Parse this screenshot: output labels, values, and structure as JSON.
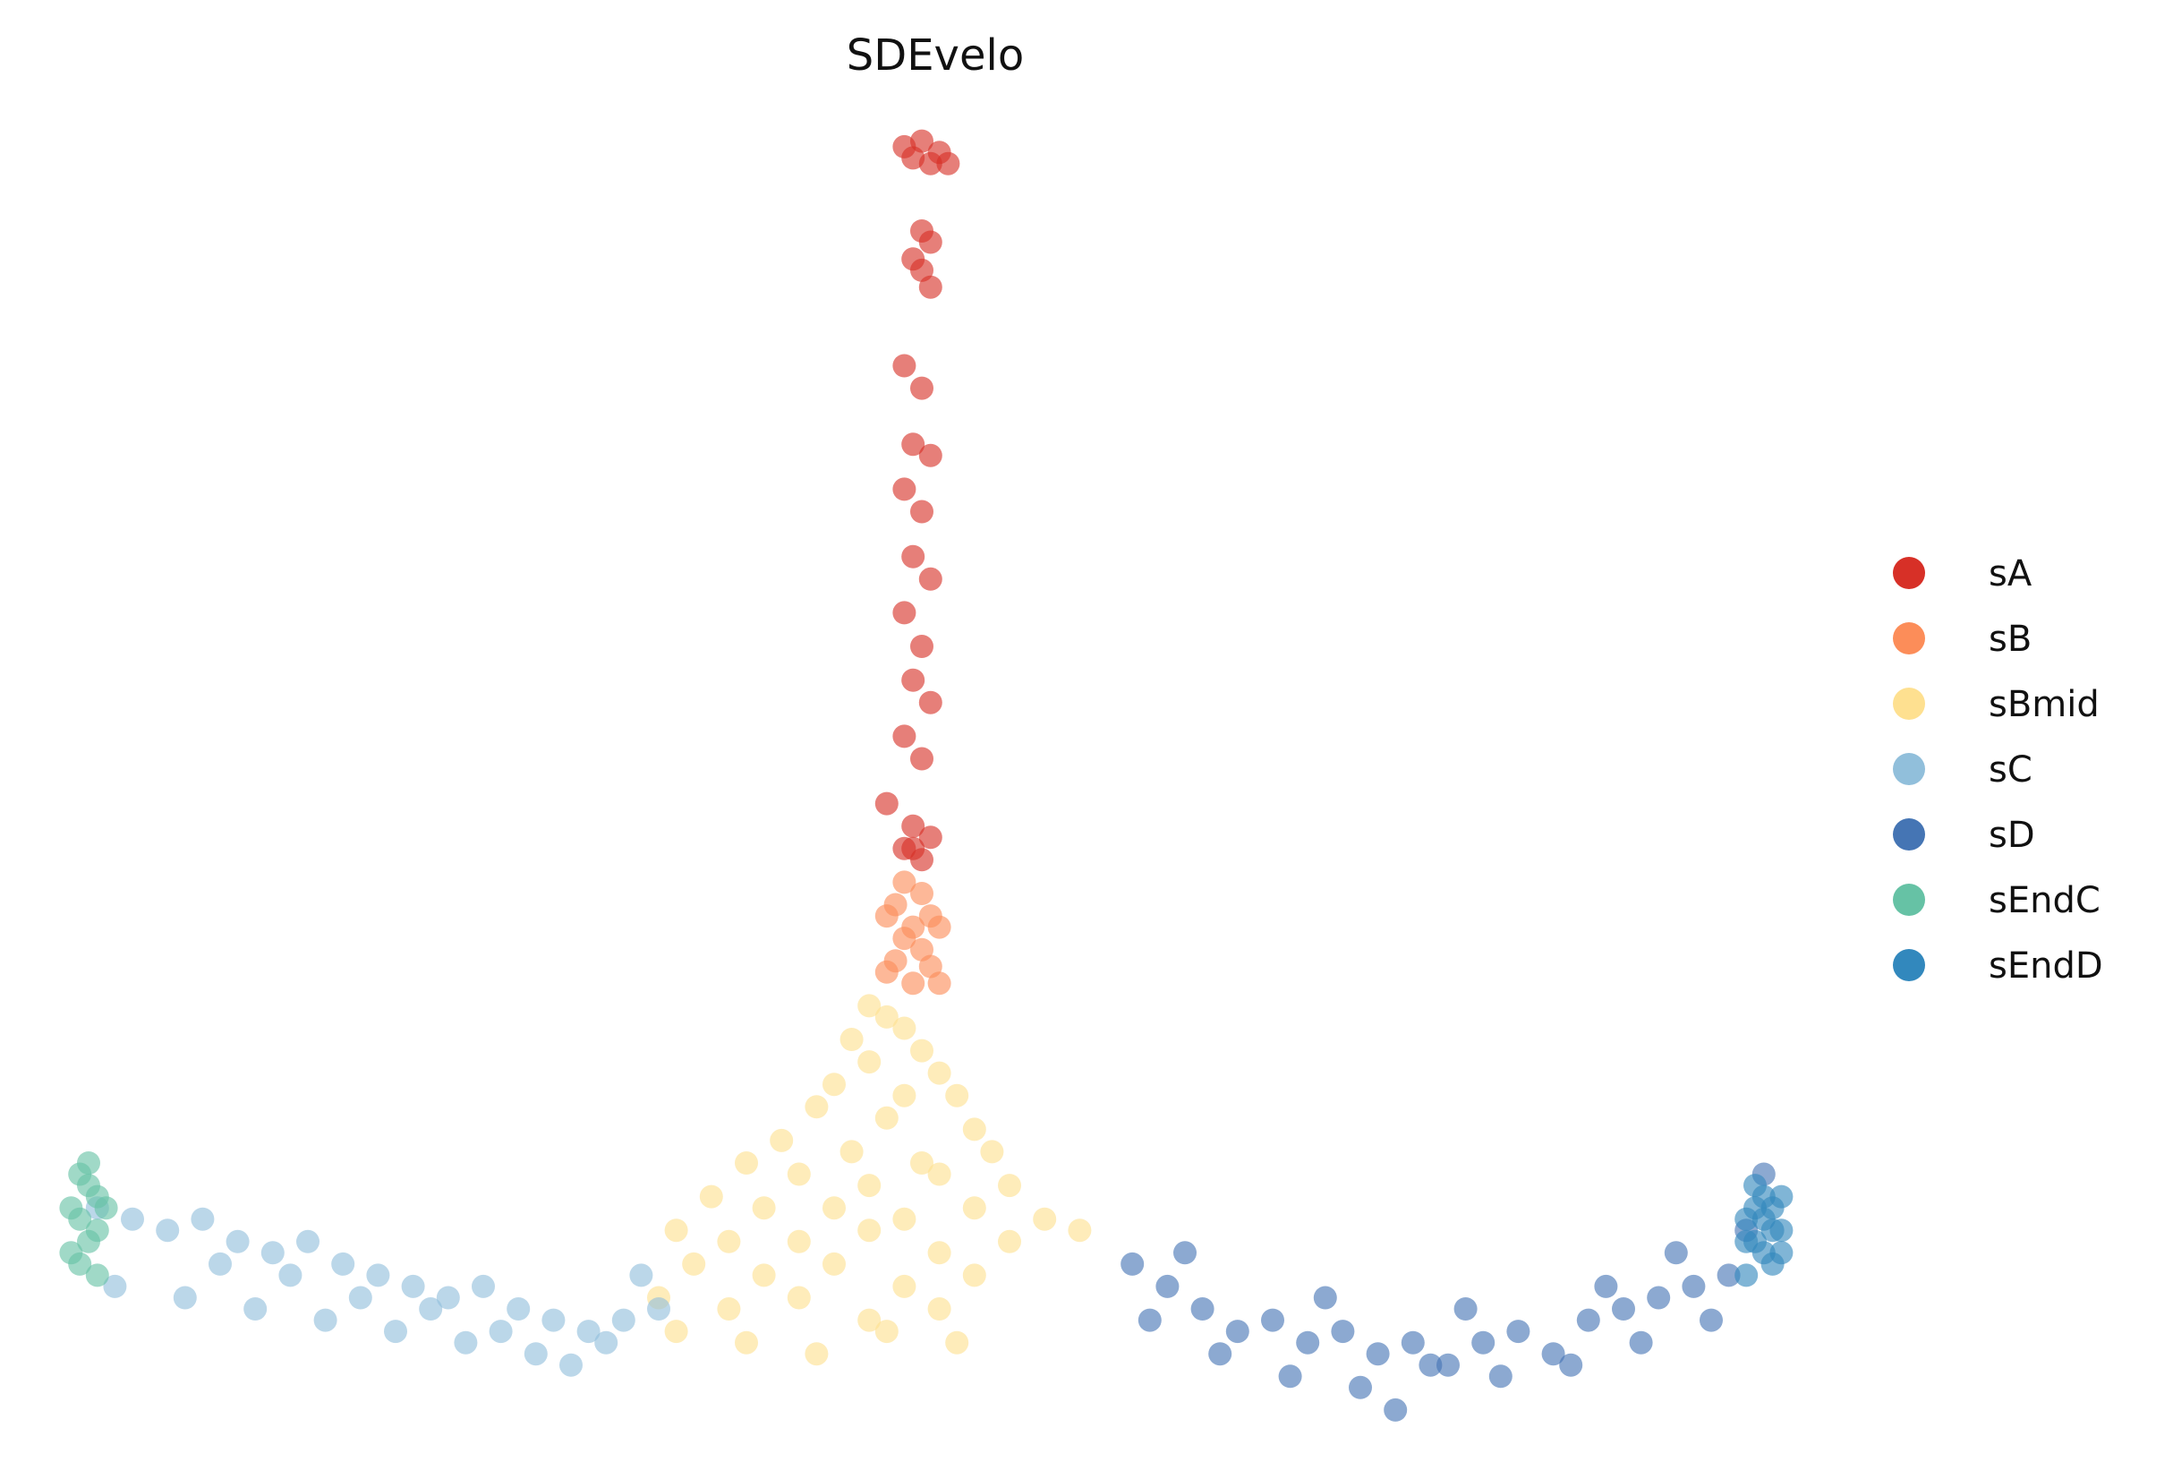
{
  "chart_data": {
    "type": "scatter",
    "title": "SDEvelo",
    "xlabel": "",
    "ylabel": "",
    "axes_visible": false,
    "legend_position": "right",
    "series": [
      {
        "name": "sA",
        "color": "#d73027",
        "points": [
          [
            0.5,
            0.97
          ],
          [
            0.51,
            0.96
          ],
          [
            0.495,
            0.955
          ],
          [
            0.505,
            0.95
          ],
          [
            0.49,
            0.965
          ],
          [
            0.515,
            0.95
          ],
          [
            0.5,
            0.89
          ],
          [
            0.505,
            0.88
          ],
          [
            0.495,
            0.865
          ],
          [
            0.5,
            0.855
          ],
          [
            0.505,
            0.84
          ],
          [
            0.49,
            0.77
          ],
          [
            0.5,
            0.75
          ],
          [
            0.495,
            0.7
          ],
          [
            0.505,
            0.69
          ],
          [
            0.49,
            0.66
          ],
          [
            0.5,
            0.64
          ],
          [
            0.495,
            0.6
          ],
          [
            0.505,
            0.58
          ],
          [
            0.49,
            0.55
          ],
          [
            0.5,
            0.52
          ],
          [
            0.495,
            0.49
          ],
          [
            0.505,
            0.47
          ],
          [
            0.49,
            0.44
          ],
          [
            0.5,
            0.42
          ],
          [
            0.48,
            0.38
          ],
          [
            0.495,
            0.36
          ],
          [
            0.505,
            0.35
          ],
          [
            0.49,
            0.34
          ],
          [
            0.5,
            0.33
          ],
          [
            0.495,
            0.34
          ]
        ]
      },
      {
        "name": "sB",
        "color": "#fc8d59",
        "points": [
          [
            0.49,
            0.31
          ],
          [
            0.5,
            0.3
          ],
          [
            0.485,
            0.29
          ],
          [
            0.505,
            0.28
          ],
          [
            0.495,
            0.27
          ],
          [
            0.48,
            0.28
          ],
          [
            0.51,
            0.27
          ],
          [
            0.49,
            0.26
          ],
          [
            0.5,
            0.25
          ],
          [
            0.485,
            0.24
          ],
          [
            0.505,
            0.235
          ],
          [
            0.495,
            0.22
          ],
          [
            0.48,
            0.23
          ],
          [
            0.51,
            0.22
          ]
        ]
      },
      {
        "name": "sBmid",
        "color": "#fee090",
        "points": [
          [
            0.47,
            0.2
          ],
          [
            0.48,
            0.19
          ],
          [
            0.49,
            0.18
          ],
          [
            0.46,
            0.17
          ],
          [
            0.5,
            0.16
          ],
          [
            0.47,
            0.15
          ],
          [
            0.51,
            0.14
          ],
          [
            0.45,
            0.13
          ],
          [
            0.49,
            0.12
          ],
          [
            0.52,
            0.12
          ],
          [
            0.44,
            0.11
          ],
          [
            0.48,
            0.1
          ],
          [
            0.53,
            0.09
          ],
          [
            0.42,
            0.08
          ],
          [
            0.46,
            0.07
          ],
          [
            0.5,
            0.06
          ],
          [
            0.54,
            0.07
          ],
          [
            0.4,
            0.06
          ],
          [
            0.43,
            0.05
          ],
          [
            0.47,
            0.04
          ],
          [
            0.51,
            0.05
          ],
          [
            0.55,
            0.04
          ],
          [
            0.38,
            0.03
          ],
          [
            0.41,
            0.02
          ],
          [
            0.45,
            0.02
          ],
          [
            0.49,
            0.01
          ],
          [
            0.53,
            0.02
          ],
          [
            0.57,
            0.01
          ],
          [
            0.36,
            0.0
          ],
          [
            0.39,
            -0.01
          ],
          [
            0.43,
            -0.01
          ],
          [
            0.47,
            0.0
          ],
          [
            0.51,
            -0.02
          ],
          [
            0.55,
            -0.01
          ],
          [
            0.59,
            0.0
          ],
          [
            0.37,
            -0.03
          ],
          [
            0.41,
            -0.04
          ],
          [
            0.45,
            -0.03
          ],
          [
            0.49,
            -0.05
          ],
          [
            0.53,
            -0.04
          ],
          [
            0.35,
            -0.06
          ],
          [
            0.39,
            -0.07
          ],
          [
            0.43,
            -0.06
          ],
          [
            0.47,
            -0.08
          ],
          [
            0.51,
            -0.07
          ],
          [
            0.36,
            -0.09
          ],
          [
            0.4,
            -0.1
          ],
          [
            0.44,
            -0.11
          ],
          [
            0.48,
            -0.09
          ],
          [
            0.52,
            -0.1
          ]
        ]
      },
      {
        "name": "sC",
        "color": "#91bfdb",
        "points": [
          [
            0.03,
            0.02
          ],
          [
            0.05,
            0.01
          ],
          [
            0.07,
            0.0
          ],
          [
            0.09,
            0.01
          ],
          [
            0.11,
            -0.01
          ],
          [
            0.13,
            -0.02
          ],
          [
            0.15,
            -0.01
          ],
          [
            0.17,
            -0.03
          ],
          [
            0.19,
            -0.04
          ],
          [
            0.21,
            -0.05
          ],
          [
            0.23,
            -0.06
          ],
          [
            0.25,
            -0.05
          ],
          [
            0.27,
            -0.07
          ],
          [
            0.29,
            -0.08
          ],
          [
            0.31,
            -0.09
          ],
          [
            0.33,
            -0.08
          ],
          [
            0.04,
            -0.05
          ],
          [
            0.08,
            -0.06
          ],
          [
            0.12,
            -0.07
          ],
          [
            0.16,
            -0.08
          ],
          [
            0.2,
            -0.09
          ],
          [
            0.24,
            -0.1
          ],
          [
            0.28,
            -0.11
          ],
          [
            0.32,
            -0.1
          ],
          [
            0.1,
            -0.03
          ],
          [
            0.14,
            -0.04
          ],
          [
            0.18,
            -0.06
          ],
          [
            0.22,
            -0.07
          ],
          [
            0.26,
            -0.09
          ],
          [
            0.3,
            -0.12
          ],
          [
            0.34,
            -0.04
          ],
          [
            0.35,
            -0.07
          ]
        ]
      },
      {
        "name": "sD",
        "color": "#4575b4",
        "points": [
          [
            0.62,
            -0.03
          ],
          [
            0.64,
            -0.05
          ],
          [
            0.66,
            -0.07
          ],
          [
            0.68,
            -0.09
          ],
          [
            0.7,
            -0.08
          ],
          [
            0.72,
            -0.1
          ],
          [
            0.74,
            -0.09
          ],
          [
            0.76,
            -0.11
          ],
          [
            0.78,
            -0.1
          ],
          [
            0.8,
            -0.12
          ],
          [
            0.82,
            -0.1
          ],
          [
            0.84,
            -0.09
          ],
          [
            0.86,
            -0.11
          ],
          [
            0.88,
            -0.08
          ],
          [
            0.9,
            -0.07
          ],
          [
            0.92,
            -0.06
          ],
          [
            0.94,
            -0.05
          ],
          [
            0.96,
            -0.04
          ],
          [
            0.63,
            -0.08
          ],
          [
            0.67,
            -0.11
          ],
          [
            0.71,
            -0.13
          ],
          [
            0.75,
            -0.14
          ],
          [
            0.79,
            -0.12
          ],
          [
            0.83,
            -0.13
          ],
          [
            0.87,
            -0.12
          ],
          [
            0.91,
            -0.1
          ],
          [
            0.95,
            -0.08
          ],
          [
            0.65,
            -0.02
          ],
          [
            0.73,
            -0.06
          ],
          [
            0.81,
            -0.07
          ],
          [
            0.89,
            -0.05
          ],
          [
            0.93,
            -0.02
          ],
          [
            0.97,
            0.0
          ],
          [
            0.98,
            0.05
          ],
          [
            0.77,
            -0.16
          ]
        ]
      },
      {
        "name": "sEndC",
        "color": "#66c2a5",
        "points": [
          [
            0.02,
            0.05
          ],
          [
            0.025,
            0.04
          ],
          [
            0.03,
            0.03
          ],
          [
            0.015,
            0.02
          ],
          [
            0.02,
            0.01
          ],
          [
            0.03,
            0.0
          ],
          [
            0.025,
            -0.01
          ],
          [
            0.015,
            -0.02
          ],
          [
            0.02,
            -0.03
          ],
          [
            0.03,
            -0.04
          ],
          [
            0.025,
            0.06
          ],
          [
            0.035,
            0.02
          ]
        ]
      },
      {
        "name": "sEndD",
        "color": "#3288bd",
        "points": [
          [
            0.975,
            0.04
          ],
          [
            0.98,
            0.03
          ],
          [
            0.985,
            0.02
          ],
          [
            0.97,
            0.01
          ],
          [
            0.99,
            0.0
          ],
          [
            0.975,
            -0.01
          ],
          [
            0.98,
            -0.02
          ],
          [
            0.985,
            -0.03
          ],
          [
            0.97,
            -0.04
          ],
          [
            0.99,
            0.03
          ],
          [
            0.975,
            0.02
          ],
          [
            0.98,
            0.01
          ],
          [
            0.985,
            0.0
          ],
          [
            0.97,
            -0.01
          ],
          [
            0.99,
            -0.02
          ]
        ]
      }
    ]
  }
}
